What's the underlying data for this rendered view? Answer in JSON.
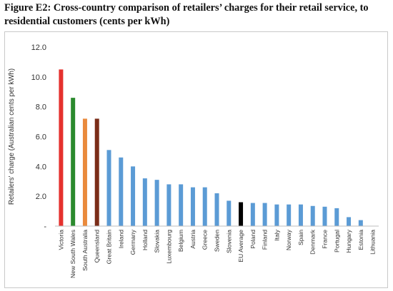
{
  "caption": "Figure E2: Cross-country comparison of retailers’ charges for their retail service, to residential customers (cents per kWh)",
  "chart_data": {
    "type": "bar",
    "title": "Figure E2: Cross-country comparison of retailers’ charges for their retail service, to residential customers (cents per kWh)",
    "ylabel": "Retailers' charge  (Australian cents per kWh)",
    "xlabel": "",
    "ylim": [
      0,
      12
    ],
    "yticks": [
      0,
      2,
      4,
      6,
      8,
      10,
      12
    ],
    "ytick_labels": [
      "-",
      "2.0",
      "4.0",
      "6.0",
      "8.0",
      "10.0",
      "12.0"
    ],
    "grid": false,
    "legend": "none",
    "categories": [
      "Victoria",
      "New South Wales",
      "South Australia",
      "Queensland",
      "Great Britain",
      "Ireland",
      "Germany",
      "Holland",
      "Slovakia",
      "Luxembourg",
      "Belgium",
      "Austria",
      "Greece",
      "Sweden",
      "Slovenia",
      "EU Average",
      "Poland",
      "Finland",
      "Italy",
      "Norway",
      "Spain",
      "Denmark",
      "France",
      "Portugal",
      "Hungary",
      "Estonia",
      "Lithuania"
    ],
    "values": [
      10.5,
      8.6,
      7.2,
      7.2,
      5.1,
      4.6,
      4.0,
      3.2,
      3.1,
      2.8,
      2.8,
      2.6,
      2.6,
      2.2,
      1.7,
      1.6,
      1.55,
      1.55,
      1.45,
      1.45,
      1.45,
      1.35,
      1.3,
      1.2,
      0.6,
      0.4,
      0.0
    ],
    "colors": [
      "#e5312e",
      "#2b8a2e",
      "#ea8a3c",
      "#7b2d19",
      "#5b9bd5",
      "#5b9bd5",
      "#5b9bd5",
      "#5b9bd5",
      "#5b9bd5",
      "#5b9bd5",
      "#5b9bd5",
      "#5b9bd5",
      "#5b9bd5",
      "#5b9bd5",
      "#5b9bd5",
      "#000000",
      "#5b9bd5",
      "#5b9bd5",
      "#5b9bd5",
      "#5b9bd5",
      "#5b9bd5",
      "#5b9bd5",
      "#5b9bd5",
      "#5b9bd5",
      "#5b9bd5",
      "#5b9bd5",
      "#5b9bd5"
    ]
  }
}
